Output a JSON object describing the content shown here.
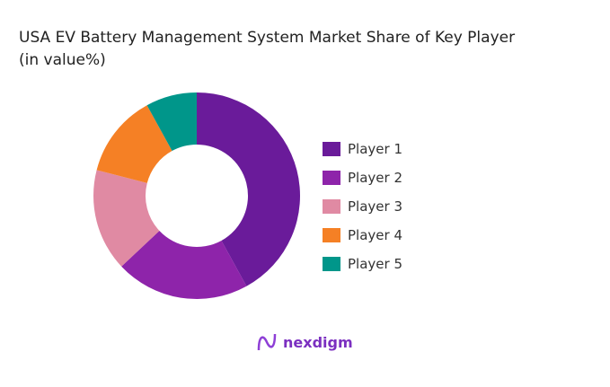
{
  "chart_data": {
    "type": "pie",
    "donut": true,
    "title": "USA EV Battery Management System Market Share of Key Player",
    "subtitle": "(in value%)",
    "categories": [
      "Player 1",
      "Player 2",
      "Player 3",
      "Player 4",
      "Player 5"
    ],
    "values": [
      42,
      21,
      16,
      13,
      8
    ],
    "colors": [
      "#6a1b9a",
      "#8e24aa",
      "#e08aa3",
      "#f58025",
      "#00968a"
    ],
    "legend_position": "right"
  },
  "brand": "nexdigm"
}
